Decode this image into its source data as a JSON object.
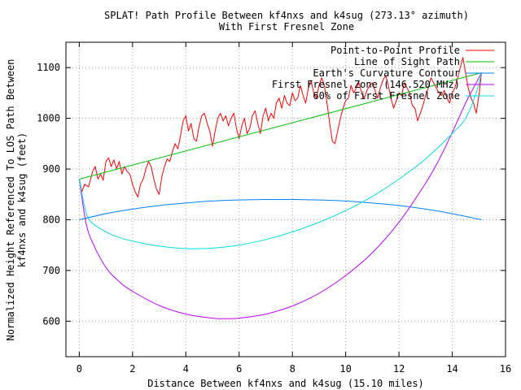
{
  "chart_data": {
    "type": "line",
    "title_line1": "SPLAT! Path Profile Between kf4nxs and k4sug (273.13° azimuth)",
    "title_line2": "With First Fresnel Zone",
    "xlabel": "Distance Between kf4nxs and k4sug (15.10 miles)",
    "ylabel_line1": "Normalized Height Referenced To LOS Path Between",
    "ylabel_line2": "kf4nxs and k4sug (feet)",
    "xlim": [
      -0.5,
      16
    ],
    "ylim": [
      530,
      1150
    ],
    "xticks": [
      0,
      2,
      4,
      6,
      8,
      10,
      12,
      14,
      16
    ],
    "yticks": [
      600,
      700,
      800,
      900,
      1000,
      1100
    ],
    "grid": true,
    "legend_position": "top-right",
    "series": [
      {
        "name": "Point-to-Point Profile",
        "color": "#ff0000",
        "x": [
          0,
          0.1,
          0.2,
          0.35,
          0.5,
          0.6,
          0.7,
          0.8,
          0.9,
          1.0,
          1.1,
          1.2,
          1.3,
          1.4,
          1.5,
          1.6,
          1.7,
          1.8,
          1.9,
          2.0,
          2.1,
          2.2,
          2.3,
          2.4,
          2.5,
          2.6,
          2.7,
          2.8,
          2.9,
          3.0,
          3.1,
          3.2,
          3.3,
          3.4,
          3.5,
          3.6,
          3.7,
          3.8,
          3.9,
          4.0,
          4.1,
          4.2,
          4.3,
          4.4,
          4.5,
          4.6,
          4.7,
          4.8,
          4.9,
          5.0,
          5.1,
          5.2,
          5.3,
          5.4,
          5.5,
          5.6,
          5.7,
          5.8,
          5.9,
          6.0,
          6.1,
          6.2,
          6.3,
          6.4,
          6.5,
          6.6,
          6.7,
          6.8,
          6.9,
          7.0,
          7.1,
          7.2,
          7.3,
          7.4,
          7.5,
          7.6,
          7.7,
          7.8,
          7.9,
          8.0,
          8.1,
          8.2,
          8.3,
          8.4,
          8.5,
          8.6,
          8.7,
          8.8,
          8.9,
          9.0,
          9.1,
          9.2,
          9.3,
          9.4,
          9.5,
          9.6,
          9.7,
          9.8,
          9.9,
          10.0,
          10.1,
          10.2,
          10.3,
          10.4,
          10.5,
          10.6,
          10.7,
          10.8,
          10.9,
          11.0,
          11.1,
          11.2,
          11.3,
          11.4,
          11.5,
          11.6,
          11.7,
          11.8,
          11.9,
          12.0,
          12.1,
          12.2,
          12.3,
          12.4,
          12.5,
          12.6,
          12.7,
          12.8,
          12.9,
          13.0,
          13.1,
          13.2,
          13.3,
          13.4,
          13.5,
          13.6,
          13.7,
          13.8,
          13.9,
          14.0,
          14.1,
          14.2,
          14.3,
          14.4,
          14.5,
          14.6,
          14.7,
          14.8,
          14.9,
          15.0,
          15.1
        ],
        "y": [
          880,
          855,
          870,
          865,
          895,
          905,
          880,
          890,
          878,
          915,
          922,
          905,
          918,
          900,
          915,
          890,
          905,
          895,
          890,
          870,
          855,
          845,
          870,
          880,
          900,
          915,
          905,
          880,
          860,
          850,
          885,
          905,
          920,
          915,
          935,
          950,
          940,
          965,
          995,
          1005,
          975,
          990,
          960,
          955,
          985,
          1005,
          1010,
          990,
          975,
          945,
          975,
          1000,
          1010,
          995,
          1005,
          985,
          1000,
          1010,
          980,
          960,
          985,
          1000,
          970,
          980,
          1005,
          1015,
          990,
          970,
          1005,
          1020,
          995,
          1010,
          1000,
          1030,
          1040,
          1020,
          1045,
          1030,
          1025,
          1050,
          1035,
          1040,
          1065,
          1045,
          1030,
          1060,
          1075,
          1050,
          1040,
          1065,
          1080,
          1065,
          1030,
          990,
          955,
          950,
          975,
          1000,
          1020,
          1035,
          1040,
          1065,
          1050,
          1060,
          1070,
          1050,
          1040,
          1055,
          1065,
          1070,
          1055,
          1040,
          1060,
          1075,
          1085,
          1065,
          1040,
          1020,
          1035,
          1050,
          1045,
          1070,
          1060,
          1050,
          1025,
          1020,
          995,
          1010,
          1025,
          1045,
          1060,
          1080,
          1070,
          1060,
          1050,
          1045,
          1055,
          1040,
          1030,
          1050,
          1060,
          1080,
          1100,
          1120,
          1090,
          1060,
          1040,
          1030,
          1010,
          1045,
          1090
        ]
      },
      {
        "name": "Line of Sight Path",
        "color": "#00c000",
        "x": [
          0,
          15.1
        ],
        "y": [
          880,
          1090
        ]
      },
      {
        "name": "Earth's Curvature Contour",
        "color": "#0080ff",
        "x": [
          0,
          1,
          2,
          3,
          4,
          5,
          6,
          7,
          7.55,
          8,
          9,
          10,
          11,
          12,
          13,
          14,
          15.1
        ],
        "y": [
          800,
          812,
          821,
          828,
          833,
          837,
          839,
          840,
          840,
          840,
          839,
          837,
          833,
          828,
          821,
          812,
          800
        ]
      },
      {
        "name": "First Fresnel Zone (146.520 MHz)",
        "color": "#c000ff",
        "x": [
          0,
          0.25,
          0.5,
          1,
          1.5,
          2,
          3,
          4,
          5,
          5.5,
          6,
          7,
          8,
          9,
          10,
          11,
          12,
          13,
          13.5,
          14,
          14.5,
          14.8,
          15,
          15.1
        ],
        "y": [
          880,
          795,
          755,
          706,
          678,
          659,
          631,
          614,
          606,
          605,
          606,
          614,
          630,
          655,
          690,
          735,
          795,
          872,
          918,
          972,
          1030,
          1060,
          1080,
          1090
        ]
      },
      {
        "name": "60% of First Fresnel Zone",
        "color": "#00e0e0",
        "x": [
          0,
          0.25,
          0.5,
          1,
          1.5,
          2,
          3,
          4,
          4.5,
          5,
          6,
          7,
          8,
          9,
          10,
          11,
          12,
          13,
          14,
          14.5,
          14.9,
          15.1
        ],
        "y": [
          880,
          815,
          793,
          776,
          765,
          758,
          748,
          743,
          743,
          744,
          750,
          761,
          776,
          795,
          818,
          846,
          880,
          920,
          970,
          1000,
          1050,
          1090
        ]
      }
    ]
  }
}
